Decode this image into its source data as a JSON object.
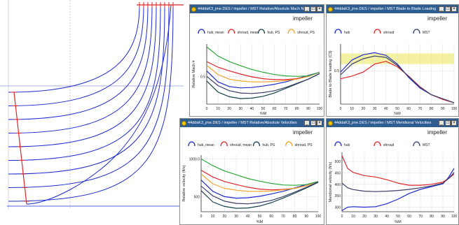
{
  "colors": {
    "title_bar": "#2d5d91",
    "blue": "#1f2bd0",
    "red": "#e0262b",
    "green": "#2ea83a",
    "orange": "#f2a32c",
    "dark_green": "#17424a",
    "navy": "#3a3f6b",
    "highlight": "#f4f2a0"
  },
  "window_button_glyphs": [
    "_",
    "□",
    "×"
  ],
  "meridional_view": {
    "description_free": true,
    "line_colors": [
      "#1f2bd0",
      "#e0262b"
    ]
  },
  "windows": [
    {
      "title": "44ddaK3_jme.DES / impeller / MST Relative/Absolute Mach Number",
      "chart_data": {
        "type": "line",
        "title": "impeller",
        "xlabel": "%M",
        "ylabel": "Relative Mach #",
        "xlim": [
          0,
          100
        ],
        "ylim": [
          0.2,
          0.85
        ],
        "xticks": [
          "0",
          "10",
          "20",
          "30",
          "40",
          "50",
          "60",
          "70",
          "80",
          "90",
          "100"
        ],
        "yticks": [
          {
            "value": 0.5,
            "label": "0.5"
          }
        ],
        "legend_position": "top",
        "x": [
          0,
          10,
          20,
          30,
          40,
          50,
          60,
          70,
          80,
          90,
          100
        ],
        "series": [
          {
            "name": "hub, mean",
            "color": "#1f2bd0",
            "values": [
              0.56,
              0.44,
              0.39,
              0.375,
              0.38,
              0.395,
              0.415,
              0.44,
              0.475,
              0.51,
              0.545
            ]
          },
          {
            "name": "shroud, mean",
            "color": "#e0262b",
            "values": [
              0.66,
              0.6,
              0.56,
              0.525,
              0.495,
              0.475,
              0.465,
              0.465,
              0.475,
              0.5,
              0.545
            ]
          },
          {
            "name": "hub, PS",
            "color": "#17424a",
            "values": [
              0.45,
              0.33,
              0.28,
              0.26,
              0.265,
              0.285,
              0.32,
              0.37,
              0.42,
              0.47,
              0.53
            ]
          },
          {
            "name": "shroud, PS",
            "color": "#f2a32c",
            "values": [
              0.62,
              0.52,
              0.47,
              0.45,
              0.44,
              0.44,
              0.445,
              0.455,
              0.47,
              0.5,
              0.545
            ]
          },
          {
            "color": "#2ea83a",
            "values": [
              0.82,
              0.72,
              0.66,
              0.615,
              0.575,
              0.545,
              0.52,
              0.505,
              0.5,
              0.505,
              0.545
            ]
          },
          {
            "color": "#3a3f6b",
            "values": [
              0.5,
              0.4,
              0.345,
              0.32,
              0.315,
              0.325,
              0.345,
              0.38,
              0.425,
              0.47,
              0.53
            ]
          }
        ]
      }
    },
    {
      "title": "44ddaK3_jme.DES / impeller / MST Blade to Blade Loading",
      "chart_data": {
        "type": "line",
        "title": "impeller",
        "xlabel": "%M",
        "ylabel": "Blade to Blade loading (C3)",
        "xlim": [
          0,
          100
        ],
        "ylim": [
          0,
          0.9
        ],
        "xticks": [
          "0",
          "10",
          "20",
          "30",
          "40",
          "50",
          "60",
          "70",
          "80",
          "90",
          "100"
        ],
        "yticks": [
          {
            "value": 0.5,
            "label": "0.5"
          }
        ],
        "highlight_band": [
          0.6,
          0.76
        ],
        "legend_position": "top",
        "x": [
          0,
          10,
          20,
          30,
          40,
          50,
          60,
          70,
          80,
          90,
          100
        ],
        "series": [
          {
            "name": "hub",
            "color": "#1f2bd0",
            "values": [
              0.48,
              0.66,
              0.74,
              0.77,
              0.73,
              0.6,
              0.4,
              0.24,
              0.14,
              0.08,
              0.02
            ]
          },
          {
            "name": "shroud",
            "color": "#e0262b",
            "values": [
              0.38,
              0.42,
              0.48,
              0.6,
              0.64,
              0.56,
              0.42,
              0.26,
              0.14,
              0.07,
              0.02
            ]
          },
          {
            "name": "MST",
            "color": "#3a3f6b",
            "values": [
              0.44,
              0.6,
              0.68,
              0.72,
              0.7,
              0.58,
              0.41,
              0.25,
              0.14,
              0.08,
              0.02
            ]
          }
        ]
      }
    },
    {
      "title": "44ddaK3_jme.DES / impeller / MST Relative/Absolute Velocities",
      "chart_data": {
        "type": "line",
        "title": "impeller",
        "xlabel": "%M",
        "ylabel": "Relative velocity (ft/s)",
        "xlim": [
          0,
          100
        ],
        "ylim": [
          300,
          1050
        ],
        "xticks": [
          "0",
          "10",
          "20",
          "30",
          "40",
          "50",
          "60",
          "70",
          "80",
          "90",
          "100"
        ],
        "yticks": [
          {
            "value": 1000,
            "label": "1000.0"
          },
          {
            "value": 500,
            "label": "500"
          }
        ],
        "legend_position": "top",
        "x": [
          0,
          10,
          20,
          30,
          40,
          50,
          60,
          70,
          80,
          90,
          100
        ],
        "series": [
          {
            "name": "hub, mean",
            "color": "#1f2bd0",
            "values": [
              720,
              570,
              500,
              480,
              485,
              505,
              535,
              570,
              615,
              660,
              700
            ]
          },
          {
            "name": "shroud, mean",
            "color": "#e0262b",
            "values": [
              850,
              760,
              700,
              660,
              625,
              600,
              590,
              595,
              610,
              645,
              700
            ]
          },
          {
            "name": "hub, PS",
            "color": "#17424a",
            "values": [
              580,
              430,
              370,
              345,
              350,
              375,
              420,
              480,
              545,
              615,
              690
            ]
          },
          {
            "name": "shroud, PS",
            "color": "#f2a32c",
            "values": [
              800,
              670,
              610,
              585,
              570,
              570,
              575,
              590,
              610,
              645,
              700
            ]
          },
          {
            "color": "#2ea83a",
            "values": [
              1000,
              910,
              840,
              790,
              740,
              705,
              675,
              655,
              650,
              660,
              700
            ]
          },
          {
            "color": "#3a3f6b",
            "values": [
              640,
              510,
              440,
              410,
              405,
              420,
              450,
              500,
              560,
              625,
              695
            ]
          }
        ]
      }
    },
    {
      "title": "44ddaK3_jme.DES / impeller / MST Meridional Velocities",
      "chart_data": {
        "type": "line",
        "title": "impeller",
        "xlabel": "%M",
        "ylabel": "Meridional velocity (ft/s)",
        "xlim": [
          0,
          100
        ],
        "ylim": [
          280,
          540
        ],
        "xticks": [
          "0",
          "10",
          "20",
          "30",
          "40",
          "50",
          "60",
          "70",
          "80",
          "90",
          "100"
        ],
        "yticks": [
          {
            "value": 500,
            "label": "500"
          },
          {
            "value": 450,
            "label": "450"
          },
          {
            "value": 400,
            "label": "400"
          },
          {
            "value": 350,
            "label": "350"
          },
          {
            "value": 300,
            "label": "300"
          }
        ],
        "legend_position": "top",
        "x": [
          0,
          5,
          10,
          20,
          30,
          40,
          50,
          60,
          70,
          80,
          90,
          95,
          100
        ],
        "series": [
          {
            "name": "hub",
            "color": "#1f2bd0",
            "values": [
              285,
              300,
              302,
              300,
              302,
              315,
              335,
              360,
              378,
              390,
              402,
              430,
              470
            ]
          },
          {
            "name": "shroud",
            "color": "#e0262b",
            "values": [
              525,
              470,
              452,
              438,
              432,
              420,
              405,
              396,
              396,
              400,
              410,
              425,
              445
            ]
          },
          {
            "name": "MST",
            "color": "#3a3f6b",
            "values": [
              405,
              385,
              377,
              370,
              368,
              370,
              373,
              378,
              385,
              393,
              405,
              425,
              452
            ]
          }
        ]
      }
    }
  ]
}
